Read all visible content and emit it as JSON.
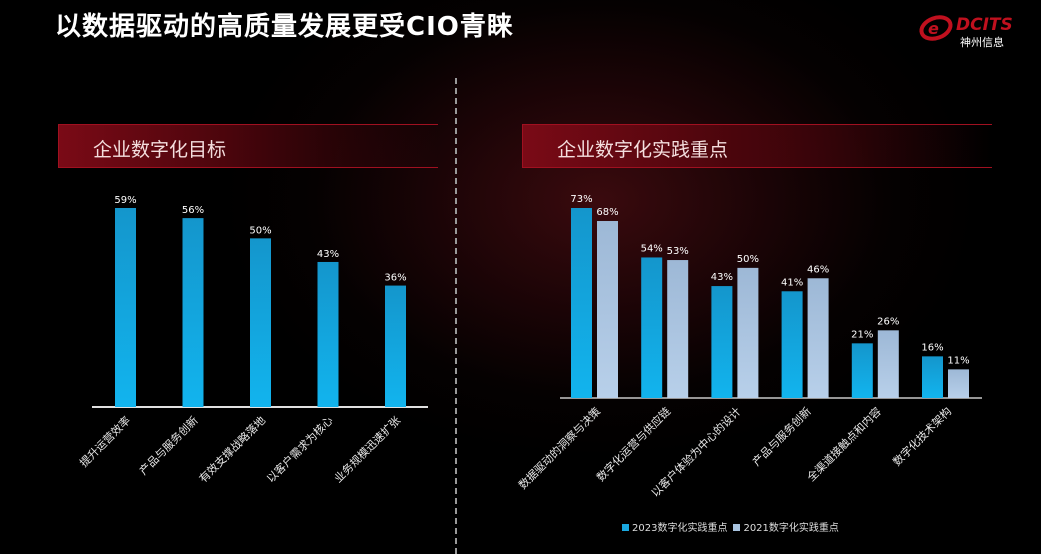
{
  "title": "以数据驱动的高质量发展更受CIO青睐",
  "logo": {
    "brand": "DCITS",
    "cn": "神州信息"
  },
  "colors": {
    "bar2023": "#1aa8e0",
    "bar2021": "#a9c4e0",
    "accent": "#c0101e"
  },
  "chart_data": [
    {
      "type": "bar",
      "title": "企业数字化目标",
      "categories": [
        "提升运营效率",
        "产品与服务创新",
        "有效支撑战略落地",
        "以客户需求为核心",
        "业务规模迅速扩张"
      ],
      "values": [
        59,
        56,
        50,
        43,
        36
      ],
      "labels": [
        "59%",
        "56%",
        "50%",
        "43%",
        "36%"
      ],
      "unit": "%",
      "grid": false
    },
    {
      "type": "bar",
      "title": "企业数字化实践重点",
      "categories": [
        "数据驱动的洞察与决策",
        "数字化运营与供应链",
        "以客户体验为中心的设计",
        "产品与服务创新",
        "全渠道接触点和内容",
        "数字化技术架构"
      ],
      "series": [
        {
          "name": "2023数字化实践重点",
          "values": [
            73,
            54,
            43,
            41,
            21,
            16
          ],
          "labels": [
            "73%",
            "54%",
            "43%",
            "41%",
            "21%",
            "16%"
          ]
        },
        {
          "name": "2021数字化实践重点",
          "values": [
            68,
            53,
            50,
            46,
            26,
            11
          ],
          "labels": [
            "68%",
            "53%",
            "50%",
            "46%",
            "26%",
            "11%"
          ]
        }
      ],
      "unit": "%",
      "legend": "bottom",
      "grid": false
    }
  ]
}
